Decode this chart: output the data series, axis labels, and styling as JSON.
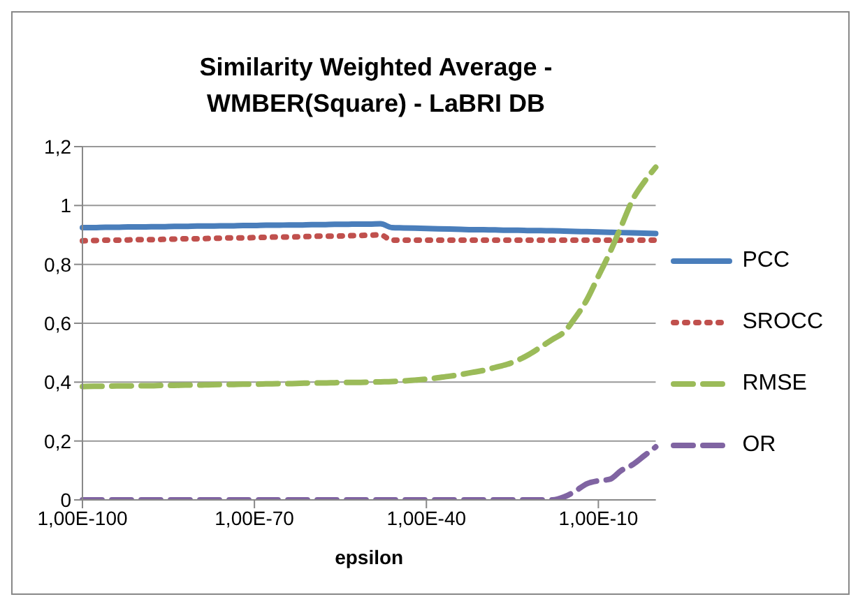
{
  "chart_data": {
    "type": "line",
    "title": "Similarity Weighted Average - WMBER(Square) - LaBRI DB",
    "xlabel": "epsilon",
    "categories": [
      "1,00E-100",
      null,
      null,
      null,
      null,
      null,
      null,
      null,
      null,
      null,
      null,
      null,
      null,
      null,
      null,
      "1,00E-70",
      null,
      null,
      null,
      null,
      null,
      null,
      null,
      null,
      null,
      null,
      null,
      null,
      null,
      null,
      "1,00E-40",
      null,
      null,
      null,
      null,
      null,
      null,
      null,
      null,
      null,
      null,
      null,
      null,
      null,
      null,
      "1,00E-10",
      null,
      null,
      null,
      null,
      null
    ],
    "series": [
      {
        "name": "PCC",
        "color": "#4a7ebb",
        "line_style": "solid",
        "values": [
          0.925,
          0.925,
          0.926,
          0.926,
          0.927,
          0.927,
          0.928,
          0.928,
          0.929,
          0.929,
          0.93,
          0.93,
          0.931,
          0.931,
          0.932,
          0.932,
          0.933,
          0.933,
          0.934,
          0.934,
          0.935,
          0.935,
          0.936,
          0.936,
          0.937,
          0.937,
          0.938,
          0.925,
          0.924,
          0.923,
          0.922,
          0.921,
          0.92,
          0.919,
          0.918,
          0.918,
          0.917,
          0.916,
          0.916,
          0.915,
          0.915,
          0.914,
          0.913,
          0.912,
          0.911,
          0.91,
          0.909,
          0.908,
          0.907,
          0.906,
          0.905
        ]
      },
      {
        "name": "SROCC",
        "color": "#c0504d",
        "line_style": "dotted",
        "values": [
          0.88,
          0.881,
          0.882,
          0.882,
          0.883,
          0.884,
          0.884,
          0.885,
          0.886,
          0.887,
          0.887,
          0.888,
          0.889,
          0.89,
          0.89,
          0.891,
          0.892,
          0.893,
          0.893,
          0.894,
          0.895,
          0.896,
          0.896,
          0.897,
          0.898,
          0.899,
          0.9,
          0.882,
          0.882,
          0.882,
          0.882,
          0.882,
          0.882,
          0.882,
          0.882,
          0.882,
          0.882,
          0.882,
          0.882,
          0.882,
          0.882,
          0.882,
          0.882,
          0.882,
          0.882,
          0.882,
          0.882,
          0.882,
          0.882,
          0.882,
          0.882
        ]
      },
      {
        "name": "RMSE",
        "color": "#9bbb59",
        "line_style": "dashed",
        "values": [
          0.385,
          0.386,
          0.386,
          0.387,
          0.387,
          0.388,
          0.388,
          0.389,
          0.389,
          0.39,
          0.39,
          0.391,
          0.392,
          0.392,
          0.393,
          0.393,
          0.394,
          0.395,
          0.395,
          0.396,
          0.397,
          0.397,
          0.398,
          0.399,
          0.399,
          0.4,
          0.401,
          0.402,
          0.404,
          0.407,
          0.41,
          0.415,
          0.42,
          0.426,
          0.433,
          0.44,
          0.45,
          0.46,
          0.475,
          0.495,
          0.52,
          0.545,
          0.57,
          0.62,
          0.68,
          0.76,
          0.84,
          0.93,
          1.02,
          1.08,
          1.13
        ]
      },
      {
        "name": "OR",
        "color": "#8064a2",
        "line_style": "dashed",
        "values": [
          0,
          0,
          0,
          0,
          0,
          0,
          0,
          0,
          0,
          0,
          0,
          0,
          0,
          0,
          0,
          0,
          0,
          0,
          0,
          0,
          0,
          0,
          0,
          0,
          0,
          0,
          0,
          0,
          0,
          0,
          0,
          0,
          0,
          0,
          0,
          0,
          0,
          0,
          0,
          0,
          0,
          0,
          0.01,
          0.03,
          0.055,
          0.065,
          0.07,
          0.1,
          0.12,
          0.15,
          0.18
        ]
      }
    ],
    "ylim": [
      0,
      1.2
    ],
    "yticks": [
      0,
      {
        "value": 0.2,
        "label": "0,2"
      },
      {
        "value": 0.4,
        "label": "0,4"
      },
      {
        "value": 0.6,
        "label": "0,6"
      },
      {
        "value": 0.8,
        "label": "0,8"
      },
      1,
      {
        "value": 1.2,
        "label": "1,2"
      }
    ],
    "grid": "y",
    "legend": "right"
  }
}
